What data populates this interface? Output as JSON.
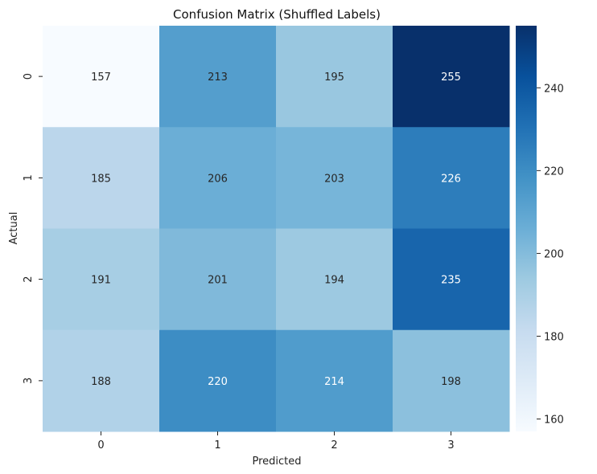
{
  "chart_data": {
    "type": "heatmap",
    "title": "Confusion Matrix (Shuffled Labels)",
    "xlabel": "Predicted",
    "ylabel": "Actual",
    "x_categories": [
      "0",
      "1",
      "2",
      "3"
    ],
    "y_categories": [
      "0",
      "1",
      "2",
      "3"
    ],
    "values": [
      [
        157,
        213,
        195,
        255
      ],
      [
        185,
        206,
        203,
        226
      ],
      [
        191,
        201,
        194,
        235
      ],
      [
        188,
        220,
        214,
        198
      ]
    ],
    "colorbar": {
      "min": 157,
      "max": 255,
      "ticks": [
        "160",
        "180",
        "200",
        "220",
        "240"
      ],
      "colormap": "Blues"
    },
    "colors": {
      "low": "#f7fbff",
      "high": "#08306b",
      "text_dark": "#262626",
      "text_light": "#ffffff"
    }
  }
}
